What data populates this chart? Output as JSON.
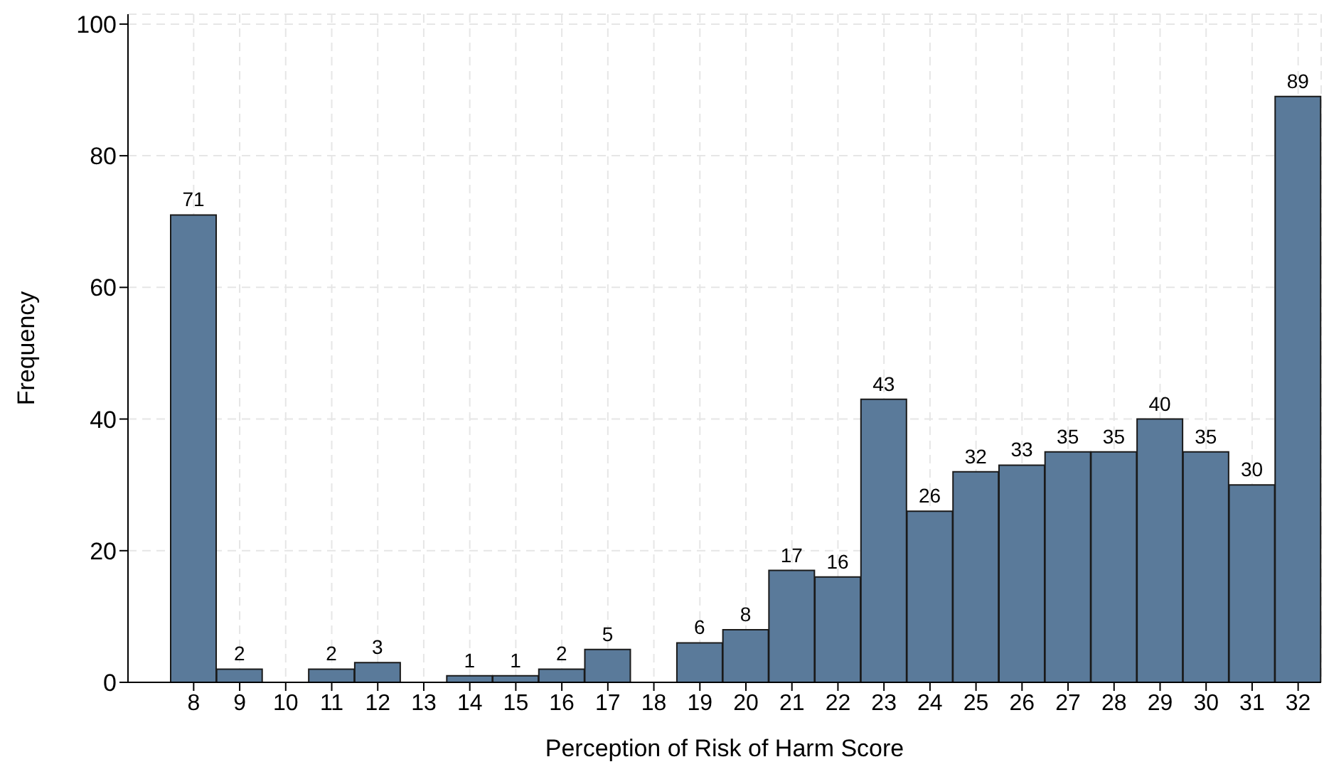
{
  "chart_data": {
    "type": "bar",
    "xlabel": "Perception of Risk of Harm Score",
    "ylabel": "Frequency",
    "categories": [
      "8",
      "9",
      "10",
      "11",
      "12",
      "13",
      "14",
      "15",
      "16",
      "17",
      "18",
      "19",
      "20",
      "21",
      "22",
      "23",
      "24",
      "25",
      "26",
      "27",
      "28",
      "29",
      "30",
      "31",
      "32"
    ],
    "values": [
      71,
      2,
      0,
      2,
      3,
      0,
      1,
      1,
      2,
      5,
      0,
      6,
      8,
      17,
      16,
      43,
      26,
      32,
      33,
      35,
      35,
      40,
      35,
      30,
      89
    ],
    "value_labels": [
      "71",
      "2",
      null,
      "2",
      "3",
      null,
      "1",
      "1",
      "2",
      "5",
      null,
      "6",
      "8",
      "17",
      "16",
      "43",
      "26",
      "32",
      "33",
      "35",
      "35",
      "40",
      "35",
      "30",
      "89"
    ],
    "color": "#5a7a9a",
    "ylim": [
      0,
      101.5
    ],
    "yticks": [
      0,
      20,
      40,
      60,
      80,
      100
    ],
    "grid": true
  }
}
